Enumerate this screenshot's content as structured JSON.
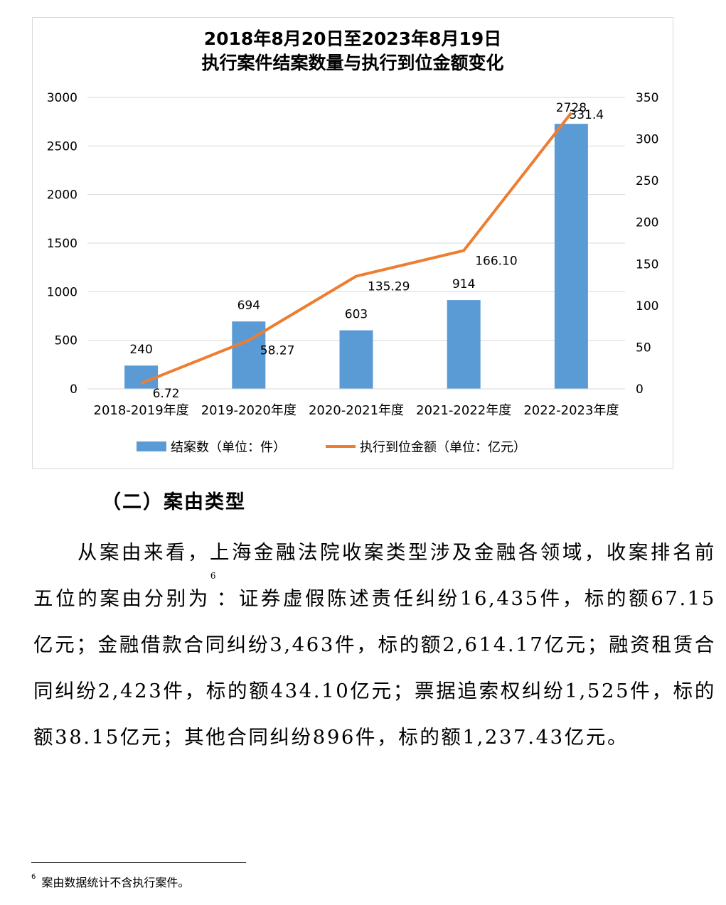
{
  "chart_data": {
    "type": "bar+line",
    "title_line1": "2018年8月20日至2023年8月19日",
    "title_line2": "执行案件结案数量与执行到位金额变化",
    "categories": [
      "2018-2019年度",
      "2019-2020年度",
      "2020-2021年度",
      "2021-2022年度",
      "2022-2023年度"
    ],
    "series": [
      {
        "name": "结案数（单位：件）",
        "type": "bar",
        "axis": "left",
        "values": [
          240,
          694,
          603,
          914,
          2728
        ],
        "labels": [
          "240",
          "694",
          "603",
          "914",
          "2728"
        ],
        "color": "#5b9bd5"
      },
      {
        "name": "执行到位金额（单位：亿元）",
        "type": "line",
        "axis": "right",
        "values": [
          6.72,
          58.27,
          135.29,
          166.1,
          331.4
        ],
        "labels": [
          "6.72",
          "58.27",
          "135.29",
          "166.10",
          "331.4"
        ],
        "color": "#ed7d31"
      }
    ],
    "y_left": {
      "min": 0,
      "max": 3000,
      "ticks": [
        "0",
        "500",
        "1000",
        "1500",
        "2000",
        "2500",
        "3000"
      ]
    },
    "y_right": {
      "min": 0,
      "max": 350,
      "ticks": [
        "0",
        "50",
        "100",
        "150",
        "200",
        "250",
        "300",
        "350"
      ]
    },
    "grid": true,
    "legend_position": "bottom"
  },
  "heading": "（二）案由类型",
  "paragraph": {
    "text_before_sup": "从案由来看，上海金融法院收案类型涉及金融各领域，收案排名前五位的案由分别为",
    "sup": "6",
    "text_after_sup": "：证券虚假陈述责任纠纷16,435件，标的额67.15亿元；金融借款合同纠纷3,463件，标的额2,614.17亿元；融资租赁合同纠纷2,423件，标的额434.10亿元；票据追索权纠纷1,525件，标的额38.15亿元；其他合同纠纷896件，标的额1,237.43亿元。"
  },
  "footnote": {
    "number": "6",
    "text": "案由数据统计不含执行案件。"
  }
}
